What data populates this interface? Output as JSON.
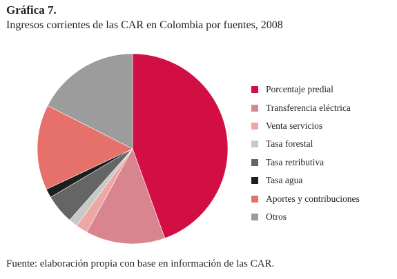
{
  "heading": "Gráfica 7.",
  "subtitle": "Ingresos corrientes de las CAR en Colombia por fuentes, 2008",
  "footer": "Fuente: elaboración propia con base en información de las CAR.",
  "chart_data": {
    "type": "pie",
    "title": "Ingresos corrientes de las CAR en Colombia por fuentes, 2008",
    "labels": [
      "Porcentaje predial",
      "Transferencia eléctrica",
      "Venta servicios",
      "Tasa forestal",
      "Tasa retributiva",
      "Tasa agua",
      "Aportes y contribuciones",
      "Otros"
    ],
    "values": [
      44.5,
      13.5,
      2.0,
      1.5,
      5.0,
      1.5,
      14.5,
      17.5
    ],
    "unit": "%",
    "colors": [
      "#d20f45",
      "#d98590",
      "#eda7a5",
      "#c8c8c8",
      "#656565",
      "#1e1e1e",
      "#e6706a",
      "#9c9c9c"
    ],
    "start": "12 o'clock",
    "direction": "clockwise",
    "legend_position": "right"
  }
}
